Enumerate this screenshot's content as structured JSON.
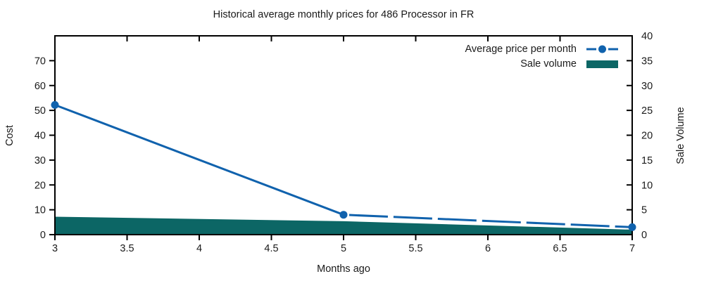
{
  "page": {
    "background": "#ffffff",
    "text_color": "#1a1a1a",
    "axis_color": "#000000"
  },
  "chart_data": {
    "type": "line+area",
    "title": "Historical average monthly prices for 486 Processor in FR",
    "xlabel": "Months ago",
    "ylabel": "Cost",
    "y2label": "Sale Volume",
    "xlim": [
      3,
      7
    ],
    "ylim": [
      0,
      80
    ],
    "y2lim": [
      0,
      40
    ],
    "xticks": [
      3,
      3.5,
      4,
      4.5,
      5,
      5.5,
      6,
      6.5,
      7
    ],
    "yticks": [
      0,
      10,
      20,
      30,
      40,
      50,
      60,
      70
    ],
    "y2ticks": [
      0,
      5,
      10,
      15,
      20,
      25,
      30,
      35,
      40
    ],
    "grid": false,
    "legend": {
      "position": "top-right-inside",
      "entries": [
        {
          "label": "Average price per month",
          "swatch": "dashed-line-with-circle",
          "color": "#1062ad"
        },
        {
          "label": "Sale volume",
          "swatch": "filled-box",
          "color": "#0c6665"
        }
      ]
    },
    "series": [
      {
        "name": "Average price per month",
        "type": "line",
        "yaxis": "left",
        "color": "#1062ad",
        "line_style": "long-dash",
        "marker": "filled-circle",
        "x": [
          3,
          5,
          7
        ],
        "y": [
          52.2,
          8,
          3
        ]
      },
      {
        "name": "Sale volume",
        "type": "area",
        "yaxis": "right",
        "color": "#0c6665",
        "x": [
          3,
          5,
          7
        ],
        "y": [
          3.6,
          2.7,
          1.0
        ]
      }
    ]
  }
}
